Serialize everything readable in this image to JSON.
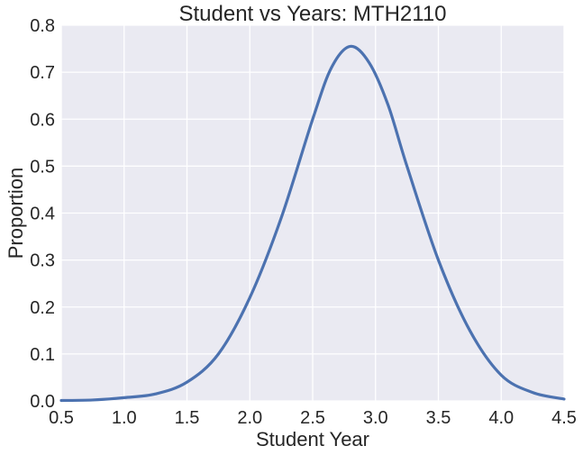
{
  "chart_data": {
    "type": "line",
    "title": "Student vs Years: MTH2110",
    "xlabel": "Student Year",
    "ylabel": "Proportion",
    "xlim": [
      0.5,
      4.5
    ],
    "ylim": [
      0.0,
      0.8
    ],
    "xticks": [
      "0.5",
      "1.0",
      "1.5",
      "2.0",
      "2.5",
      "3.0",
      "3.5",
      "4.0",
      "4.5"
    ],
    "yticks": [
      "0.0",
      "0.1",
      "0.2",
      "0.3",
      "0.4",
      "0.5",
      "0.6",
      "0.7",
      "0.8"
    ],
    "grid": true,
    "legend": "none",
    "colors": {
      "background": "#eaeaf2",
      "grid": "#ffffff",
      "series": "#4c72b0",
      "text": "#262626"
    },
    "series": [
      {
        "x": [
          0.5,
          0.75,
          1.0,
          1.25,
          1.5,
          1.75,
          2.0,
          2.25,
          2.5,
          2.65,
          2.8,
          2.95,
          3.1,
          3.25,
          3.5,
          3.75,
          4.0,
          4.25,
          4.5
        ],
        "values": [
          0.001,
          0.002,
          0.007,
          0.015,
          0.04,
          0.1,
          0.22,
          0.39,
          0.6,
          0.71,
          0.755,
          0.72,
          0.63,
          0.5,
          0.3,
          0.15,
          0.055,
          0.018,
          0.004
        ]
      }
    ]
  }
}
